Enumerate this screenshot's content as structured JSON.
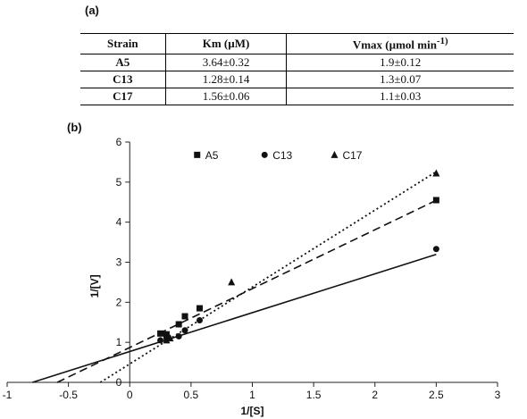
{
  "panel_a_label": "(a)",
  "panel_b_label": "(b)",
  "table": {
    "headers": {
      "strain": "Strain",
      "km": "Km (µM)",
      "vmax": "Vmax (µmol min",
      "vmax_sup": "-1)"
    },
    "rows": [
      {
        "strain": "A5",
        "km": "3.64±0.32",
        "vmax": "1.9±0.12"
      },
      {
        "strain": "C13",
        "km": "1.28±0.14",
        "vmax": "1.3±0.07"
      },
      {
        "strain": "C17",
        "km": "1.56±0.06",
        "vmax": "1.1±0.03"
      }
    ]
  },
  "chart_data": {
    "type": "scatter",
    "title": "",
    "xlabel": "1/[S]",
    "ylabel": "1/[V]",
    "xlim": [
      -1,
      3
    ],
    "ylim": [
      0,
      6
    ],
    "xticks": [
      -1,
      -0.5,
      0,
      0.5,
      1,
      1.5,
      2,
      2.5,
      3
    ],
    "xtick_labels": [
      "-1",
      "-0.5",
      "0",
      "0.5",
      "1",
      "1.5",
      "2",
      "2.5",
      "3"
    ],
    "yticks": [
      0,
      1,
      2,
      3,
      4,
      5,
      6
    ],
    "ytick_labels": [
      "0",
      "1",
      "2",
      "3",
      "4",
      "5",
      "6"
    ],
    "legend_position": "top",
    "series": [
      {
        "name": "A5",
        "marker": "square",
        "line_style": "dashed",
        "x": [
          0.25,
          0.3,
          0.4,
          0.45,
          0.57,
          2.5
        ],
        "y": [
          1.22,
          1.2,
          1.45,
          1.65,
          1.85,
          4.55
        ],
        "fit": {
          "slope": 1.47,
          "intercept": 0.87
        }
      },
      {
        "name": "C13",
        "marker": "circle",
        "line_style": "solid",
        "x": [
          0.25,
          0.3,
          0.4,
          0.45,
          0.57,
          2.5
        ],
        "y": [
          1.05,
          1.1,
          1.15,
          1.3,
          1.55,
          3.33
        ],
        "fit": {
          "slope": 0.97,
          "intercept": 0.77
        }
      },
      {
        "name": "C17",
        "marker": "triangle",
        "line_style": "dotted",
        "x": [
          0.3,
          0.33,
          0.83,
          2.5
        ],
        "y": [
          1.05,
          1.1,
          2.5,
          5.22
        ],
        "fit": {
          "slope": 1.92,
          "intercept": 0.46
        }
      }
    ]
  }
}
